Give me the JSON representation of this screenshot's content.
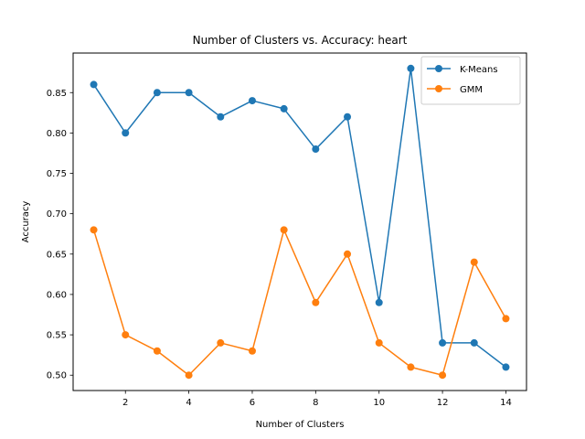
{
  "chart_data": {
    "type": "line",
    "title": "Number of Clusters vs. Accuracy: heart",
    "xlabel": "Number of Clusters",
    "ylabel": "Accuracy",
    "x": [
      1,
      2,
      3,
      4,
      5,
      6,
      7,
      8,
      9,
      10,
      11,
      12,
      13,
      14
    ],
    "xlim": [
      0.35,
      14.65
    ],
    "ylim": [
      0.481,
      0.899
    ],
    "xticks": [
      2,
      4,
      6,
      8,
      10,
      12,
      14
    ],
    "yticks": [
      0.5,
      0.55,
      0.6,
      0.65,
      0.7,
      0.75,
      0.8,
      0.85
    ],
    "ytick_labels": [
      "0.50",
      "0.55",
      "0.60",
      "0.65",
      "0.70",
      "0.75",
      "0.80",
      "0.85"
    ],
    "grid": false,
    "legend_position": "top-right",
    "series": [
      {
        "name": "K-Means",
        "color": "#1f77b4",
        "values": [
          0.86,
          0.8,
          0.85,
          0.85,
          0.82,
          0.84,
          0.83,
          0.78,
          0.82,
          0.59,
          0.88,
          0.54,
          0.54,
          0.51
        ]
      },
      {
        "name": "GMM",
        "color": "#ff7f0e",
        "values": [
          0.68,
          0.55,
          0.53,
          0.5,
          0.54,
          0.53,
          0.68,
          0.59,
          0.65,
          0.54,
          0.51,
          0.5,
          0.64,
          0.57
        ]
      }
    ]
  }
}
